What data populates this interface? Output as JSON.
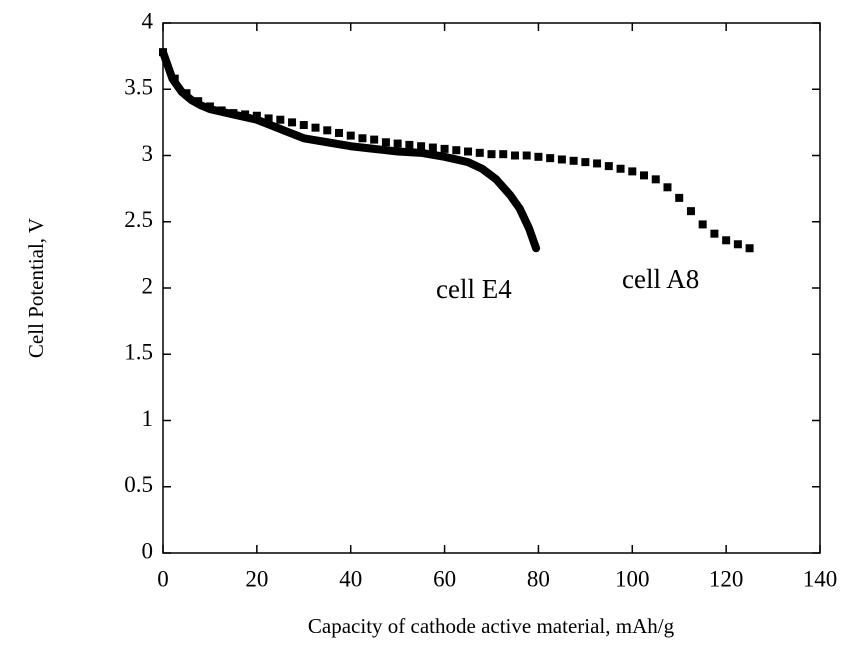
{
  "chart_data": {
    "type": "line",
    "x_label": "Capacity of cathode active material, mAh/g",
    "y_label": "Cell Potential, V",
    "xlim": [
      0,
      140
    ],
    "xticks": [
      0,
      20,
      40,
      60,
      80,
      100,
      120,
      140
    ],
    "ylim": [
      0,
      4
    ],
    "yticks": [
      0,
      0.5,
      1,
      1.5,
      2,
      2.5,
      3,
      3.5,
      4
    ],
    "series": [
      {
        "name": "cell A8",
        "style": "markers",
        "color": "#000000",
        "x": [
          0,
          2.5,
          5,
          7.5,
          10,
          12.5,
          15,
          17.5,
          20,
          22.5,
          25,
          27.5,
          30,
          32.5,
          35,
          37.5,
          40,
          42.5,
          45,
          47.5,
          50,
          52.5,
          55,
          57.5,
          60,
          62.5,
          65,
          67.5,
          70,
          72.5,
          75,
          77.5,
          80,
          82.5,
          85,
          87.5,
          90,
          92.5,
          95,
          97.5,
          100,
          102.5,
          105,
          107.5,
          110,
          112.5,
          115,
          117.5,
          120,
          122.5,
          125
        ],
        "values": [
          3.78,
          3.58,
          3.47,
          3.41,
          3.37,
          3.34,
          3.32,
          3.31,
          3.3,
          3.28,
          3.27,
          3.25,
          3.23,
          3.21,
          3.19,
          3.17,
          3.15,
          3.13,
          3.12,
          3.1,
          3.09,
          3.08,
          3.07,
          3.06,
          3.05,
          3.04,
          3.03,
          3.02,
          3.01,
          3.01,
          3.0,
          3.0,
          2.99,
          2.98,
          2.97,
          2.96,
          2.95,
          2.94,
          2.92,
          2.9,
          2.88,
          2.85,
          2.82,
          2.76,
          2.68,
          2.58,
          2.48,
          2.41,
          2.36,
          2.33,
          2.3
        ]
      },
      {
        "name": "cell E4",
        "style": "line",
        "color": "#000000",
        "x": [
          0,
          1,
          2,
          4,
          6,
          8,
          10,
          15,
          20,
          25,
          30,
          35,
          40,
          45,
          50,
          55,
          60,
          65,
          68,
          71,
          74,
          76,
          78,
          79.5
        ],
        "values": [
          3.78,
          3.68,
          3.58,
          3.48,
          3.42,
          3.38,
          3.35,
          3.31,
          3.27,
          3.2,
          3.13,
          3.1,
          3.07,
          3.05,
          3.03,
          3.02,
          2.99,
          2.95,
          2.9,
          2.82,
          2.7,
          2.6,
          2.45,
          2.3
        ]
      }
    ]
  }
}
